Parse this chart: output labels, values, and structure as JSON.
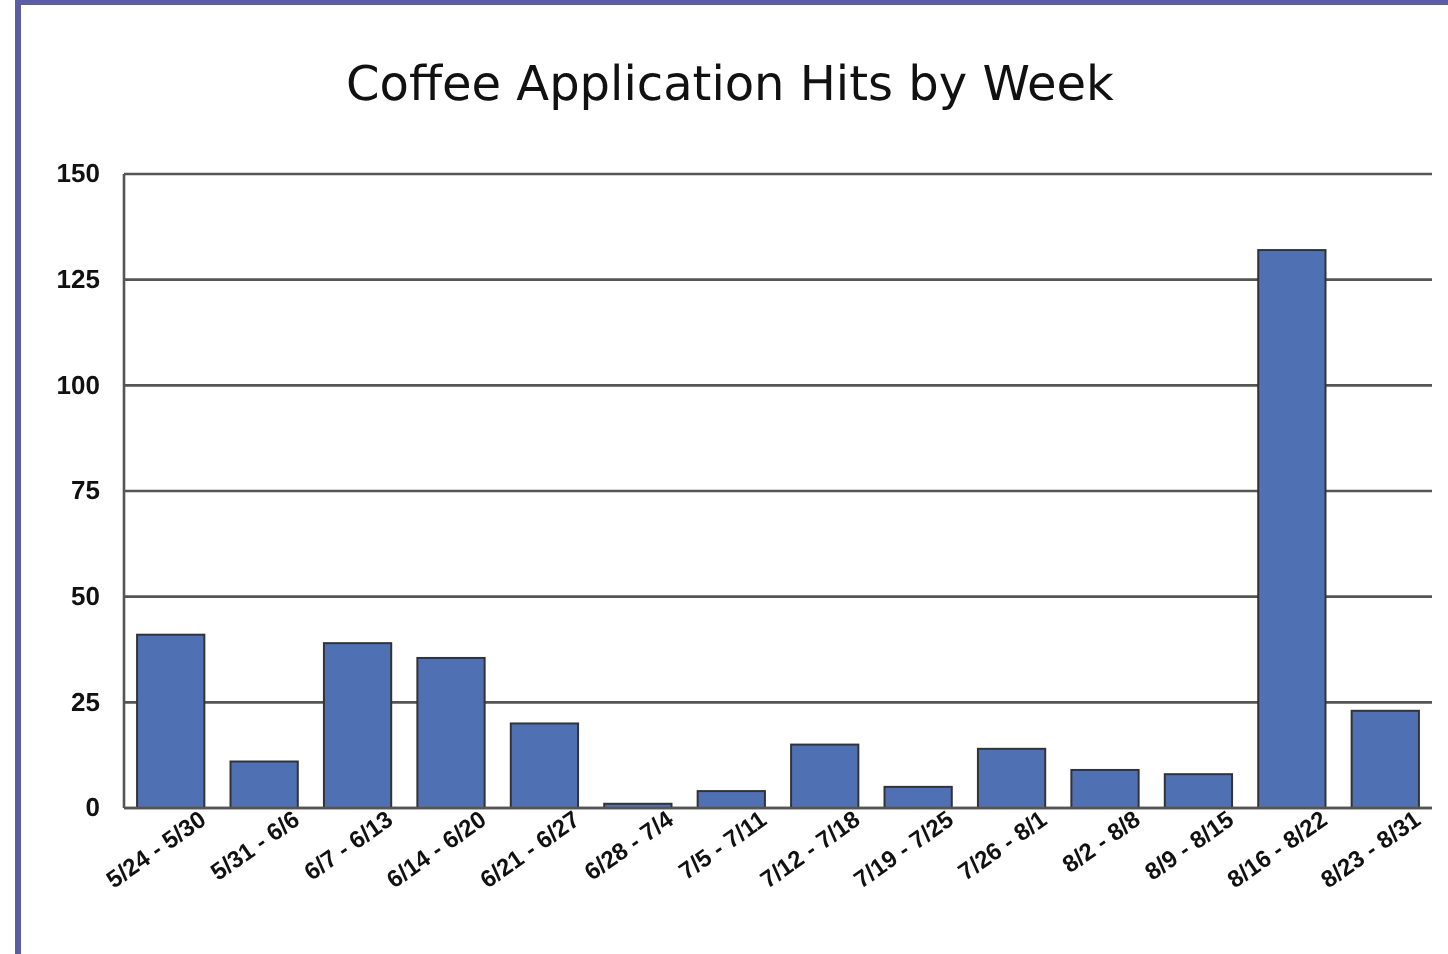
{
  "chart_data": {
    "type": "bar",
    "title": "Coffee Application Hits by Week",
    "categories": [
      "5/24 - 5/30",
      "5/31 - 6/6",
      "6/7 - 6/13",
      "6/14 - 6/20",
      "6/21 - 6/27",
      "6/28 - 7/4",
      "7/5 - 7/11",
      "7/12 - 7/18",
      "7/19 - 7/25",
      "7/26 - 8/1",
      "8/2 - 8/8",
      "8/9 - 8/15",
      "8/16 - 8/22",
      "8/23 - 8/31"
    ],
    "values": [
      41,
      11,
      39,
      35.5,
      20,
      1,
      4,
      15,
      5,
      14,
      9,
      8,
      132,
      23
    ],
    "color": "#4f71b3",
    "ylim": [
      0,
      150
    ],
    "yticks": [
      0,
      25,
      50,
      75,
      100,
      125,
      150
    ],
    "grid": "y"
  }
}
